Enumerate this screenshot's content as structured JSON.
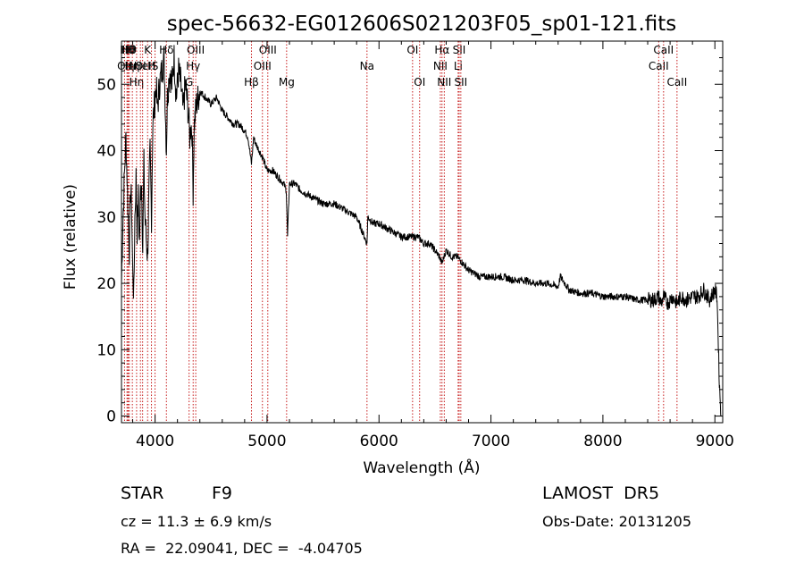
{
  "chart_data": {
    "type": "line",
    "title": "spec-56632-EG012606S021203F05_sp01-121.fits",
    "xlabel": "Wavelength (Å)",
    "ylabel": "Flux (relative)",
    "xlim": [
      3700,
      9070
    ],
    "ylim": [
      -1,
      56.5
    ],
    "xticks": [
      4000,
      5000,
      6000,
      7000,
      8000,
      9000
    ],
    "yticks": [
      0,
      10,
      20,
      30,
      40,
      50
    ],
    "x_tick_labels": [
      "4000",
      "5000",
      "6000",
      "7000",
      "8000",
      "9000"
    ],
    "y_tick_labels": [
      "0",
      "10",
      "20",
      "30",
      "40",
      "50"
    ],
    "grid": false,
    "series": [
      {
        "x": [
          3700,
          3710,
          3720,
          3730,
          3740,
          3750,
          3760,
          3770,
          3780,
          3790,
          3800,
          3810,
          3820,
          3830,
          3840,
          3850,
          3860,
          3870,
          3880,
          3890,
          3900,
          3910,
          3920,
          3933,
          3945,
          3955,
          3968,
          3980,
          3990,
          4000,
          4010,
          4020,
          4040,
          4060,
          4080,
          4101,
          4110,
          4130,
          4150,
          4170,
          4190,
          4210,
          4230,
          4250,
          4270,
          4290,
          4300,
          4310,
          4320,
          4330,
          4340,
          4350,
          4370,
          4400,
          4450,
          4500,
          4550,
          4600,
          4650,
          4700,
          4750,
          4800,
          4830,
          4861,
          4880,
          4900,
          4930,
          4960,
          5000,
          5050,
          5100,
          5150,
          5172,
          5183,
          5200,
          5250,
          5300,
          5400,
          5500,
          5550,
          5600,
          5700,
          5800,
          5893,
          5900,
          5950,
          6000,
          6100,
          6200,
          6300,
          6350,
          6400,
          6450,
          6500,
          6540,
          6563,
          6580,
          6600,
          6650,
          6700,
          6750,
          6800,
          6900,
          7000,
          7050,
          7100,
          7200,
          7300,
          7400,
          7500,
          7600,
          7620,
          7700,
          7800,
          7900,
          8000,
          8100,
          8200,
          8300,
          8400,
          8450,
          8498,
          8520,
          8542,
          8580,
          8620,
          8662,
          8700,
          8750,
          8800,
          8850,
          8900,
          8950,
          9000,
          9020,
          9040,
          9055
        ],
        "y": [
          20,
          28,
          33,
          38,
          42,
          36,
          30,
          25,
          34,
          32,
          22,
          18,
          30,
          36,
          28,
          33,
          26,
          34,
          35,
          25,
          38,
          30,
          27,
          24,
          33,
          40,
          30,
          44,
          46,
          48,
          50,
          46,
          50,
          52,
          54,
          40,
          48,
          52,
          50,
          54,
          48,
          52,
          50,
          46,
          50,
          47,
          45,
          42,
          44,
          43,
          34,
          44,
          47,
          49,
          48,
          47,
          48,
          46,
          45,
          44,
          44,
          43,
          42,
          38,
          42,
          41,
          40,
          39,
          37,
          37,
          36,
          35,
          34,
          27,
          35,
          35,
          34,
          33,
          32,
          32,
          32,
          31,
          30,
          26,
          30,
          29,
          29,
          28,
          27,
          27,
          27,
          26,
          26,
          25,
          24,
          23,
          24,
          25,
          24,
          24,
          23,
          22,
          21,
          21,
          21,
          21,
          20.5,
          20.5,
          20,
          20,
          19.5,
          21,
          19,
          18.5,
          18.5,
          18,
          18,
          18,
          17.5,
          17.5,
          17.5,
          18,
          17,
          18,
          17,
          18,
          17,
          18,
          17.5,
          18,
          18,
          19,
          17.5,
          19,
          18,
          5,
          0
        ]
      }
    ],
    "lines": [
      {
        "x": 3727,
        "row": 1,
        "label": "OII"
      },
      {
        "x": 3750,
        "row": 0,
        "label": "Hθ"
      },
      {
        "x": 3750,
        "row": 1,
        "label": "Hη"
      },
      {
        "x": 3760,
        "row": 0,
        "label": "Hθ"
      },
      {
        "x": 3770,
        "row": 0,
        "label": "Hθ"
      },
      {
        "x": 3797,
        "row": 1,
        "label": "Hη"
      },
      {
        "x": 3835,
        "row": 2,
        "label": "Hη"
      },
      {
        "x": 3869,
        "row": 1,
        "label": "OI"
      },
      {
        "x": 3889,
        "row": 1,
        "label": "HeI"
      },
      {
        "x": 3933,
        "row": 0,
        "label": "K"
      },
      {
        "x": 3968,
        "row": 1,
        "label": "H"
      },
      {
        "x": 4000,
        "row": 1,
        "label": "S"
      },
      {
        "x": 4101,
        "row": 0,
        "label": "Hδ"
      },
      {
        "x": 4304,
        "row": 2,
        "label": "G"
      },
      {
        "x": 4340,
        "row": 1,
        "label": "Hγ"
      },
      {
        "x": 4363,
        "row": 0,
        "label": "OIII"
      },
      {
        "x": 4861,
        "row": 2,
        "label": "Hβ"
      },
      {
        "x": 4959,
        "row": 1,
        "label": "OIII"
      },
      {
        "x": 5007,
        "row": 0,
        "label": "OIII"
      },
      {
        "x": 5175,
        "row": 2,
        "label": "Mg"
      },
      {
        "x": 5893,
        "row": 1,
        "label": "Na"
      },
      {
        "x": 6300,
        "row": 0,
        "label": "OI"
      },
      {
        "x": 6363,
        "row": 2,
        "label": "OI"
      },
      {
        "x": 6548,
        "row": 1,
        "label": "NII"
      },
      {
        "x": 6563,
        "row": 0,
        "label": "Hα"
      },
      {
        "x": 6583,
        "row": 2,
        "label": "NII"
      },
      {
        "x": 6707,
        "row": 1,
        "label": "Li"
      },
      {
        "x": 6716,
        "row": 0,
        "label": "SII"
      },
      {
        "x": 6731,
        "row": 2,
        "label": "SII"
      },
      {
        "x": 8498,
        "row": 1,
        "label": "CaII"
      },
      {
        "x": 8542,
        "row": 0,
        "label": "CaII"
      },
      {
        "x": 8662,
        "row": 2,
        "label": "CaII"
      }
    ]
  },
  "info": {
    "class_label": "STAR",
    "subclass": "F9",
    "survey": "LAMOST  DR5",
    "cz": "cz = 11.3 ± 6.9 km/s",
    "obs_date": "Obs-Date: 20131205",
    "coords": "RA =  22.09041, DEC =  -4.04705"
  }
}
